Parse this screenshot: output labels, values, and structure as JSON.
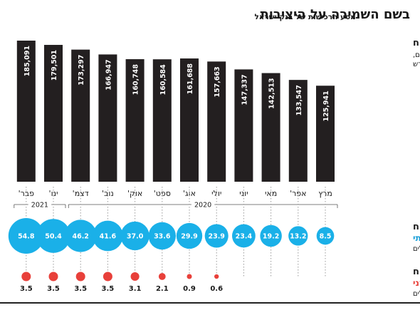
{
  "header": {
    "title": "בשם השמירה על היציבות",
    "subtitle": "מסע הרכישות של בנק ישראל"
  },
  "legend": {
    "reserves_title": "יתרות מט\"ח",
    "reserves_unit_line1": "במיליוני דולרים,",
    "reserves_unit_line2": "נכון לסוף חודש",
    "gov_title": "רכישות אג\"ח",
    "gov_subtitle": "ממשלתי",
    "gov_unit": "במיליארדי שקלים",
    "corp_title": "רכישות אג\"ח",
    "corp_subtitle": "קונצרני",
    "corp_unit": "במיליארדי שקלים"
  },
  "chart_data": {
    "type": "bar",
    "categories": [
      "מרץ",
      "אפר'",
      "מאי",
      "יוני",
      "יולי",
      "אוג'",
      "ספט'",
      "אוק'",
      "נוב'",
      "דצמ'",
      "ינו'",
      "פבר'"
    ],
    "years": [
      {
        "label": "2020",
        "first": 0,
        "last": 9
      },
      {
        "label": "2021",
        "first": 10,
        "last": 11
      }
    ],
    "series": [
      {
        "name": "יתרות מט\"ח",
        "values": [
          125941,
          133547,
          142513,
          147337,
          157663,
          161688,
          160584,
          160748,
          166947,
          173297,
          179501,
          185091
        ],
        "labels": [
          "125,941",
          "133,547",
          "142,513",
          "147,337",
          "157,663",
          "161,688",
          "160,584",
          "160,748",
          "166,947",
          "173,297",
          "179,501",
          "185,091"
        ]
      },
      {
        "name": "רכישות אג\"ח ממשלתי",
        "values": [
          8.5,
          13.2,
          19.2,
          23.4,
          23.9,
          29.9,
          33.6,
          37.0,
          41.6,
          46.2,
          50.4,
          54.8
        ],
        "labels": [
          "8.5",
          "13.2",
          "19.2",
          "23.4",
          "23.9",
          "29.9",
          "33.6",
          "37.0",
          "41.6",
          "46.2",
          "50.4",
          "54.8"
        ]
      },
      {
        "name": "רכישות אג\"ח קונצרני",
        "values": [
          0,
          0,
          0,
          0,
          0.6,
          0.9,
          2.1,
          3.1,
          3.5,
          3.5,
          3.5,
          3.5
        ],
        "labels": [
          "",
          "",
          "",
          "",
          "0.6",
          "0.9",
          "2.1",
          "3.1",
          "3.5",
          "3.5",
          "3.5",
          "3.5"
        ]
      }
    ],
    "order": "right-to-left",
    "colors": {
      "bar": "#231f20",
      "gov": "#1ab0e8",
      "corp": "#e8403a",
      "text": "#1a1a1a",
      "gov_text": "#1a9fd8",
      "corp_text": "#e8403a"
    }
  }
}
